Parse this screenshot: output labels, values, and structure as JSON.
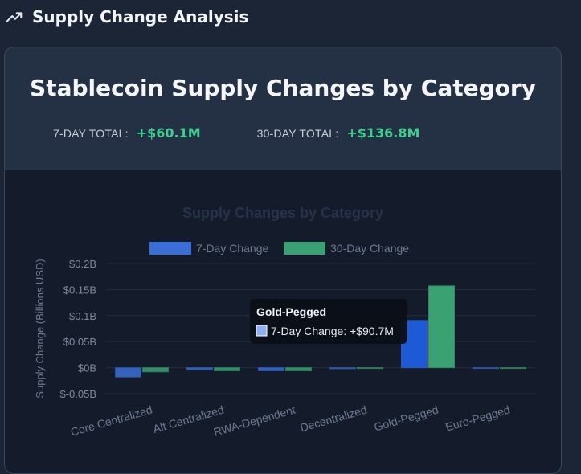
{
  "header": {
    "title": "Supply Change Analysis",
    "icon": "trending-up-icon"
  },
  "card": {
    "title": "Stablecoin Supply Changes by Category",
    "totals": [
      {
        "label": "7-DAY TOTAL:",
        "value": "+$60.1M"
      },
      {
        "label": "30-DAY TOTAL:",
        "value": "+$136.8M"
      }
    ]
  },
  "colors": {
    "accent_green": "#3ecf8e",
    "series_blue": "#3b6fd8",
    "series_green": "#3aa272"
  },
  "chart_data": {
    "type": "bar",
    "title": "Supply Changes by Category",
    "xlabel": "",
    "ylabel": "Supply Change (Billions USD)",
    "ylim": [
      -0.05,
      0.2
    ],
    "yticks": [
      -0.05,
      0,
      0.05,
      0.1,
      0.15,
      0.2
    ],
    "ytick_labels": [
      "$-0.05B",
      "$0B",
      "$0.05B",
      "$0.1B",
      "$0.15B",
      "$0.2B"
    ],
    "categories": [
      "Core Centralized",
      "Alt Centralized",
      "RWA-Dependent",
      "Decentralized",
      "Gold-Pegged",
      "Euro-Pegged"
    ],
    "series": [
      {
        "name": "7-Day Change",
        "values": [
          -0.018,
          -0.004,
          -0.006,
          -0.002,
          0.0907,
          0
        ]
      },
      {
        "name": "30-Day Change",
        "values": [
          -0.008,
          -0.006,
          -0.006,
          -0.001,
          0.157,
          0
        ]
      }
    ],
    "legend": "top-center",
    "grid": true,
    "tooltip": {
      "title": "Gold-Pegged",
      "text": "7-Day Change: +$90.7M"
    }
  }
}
